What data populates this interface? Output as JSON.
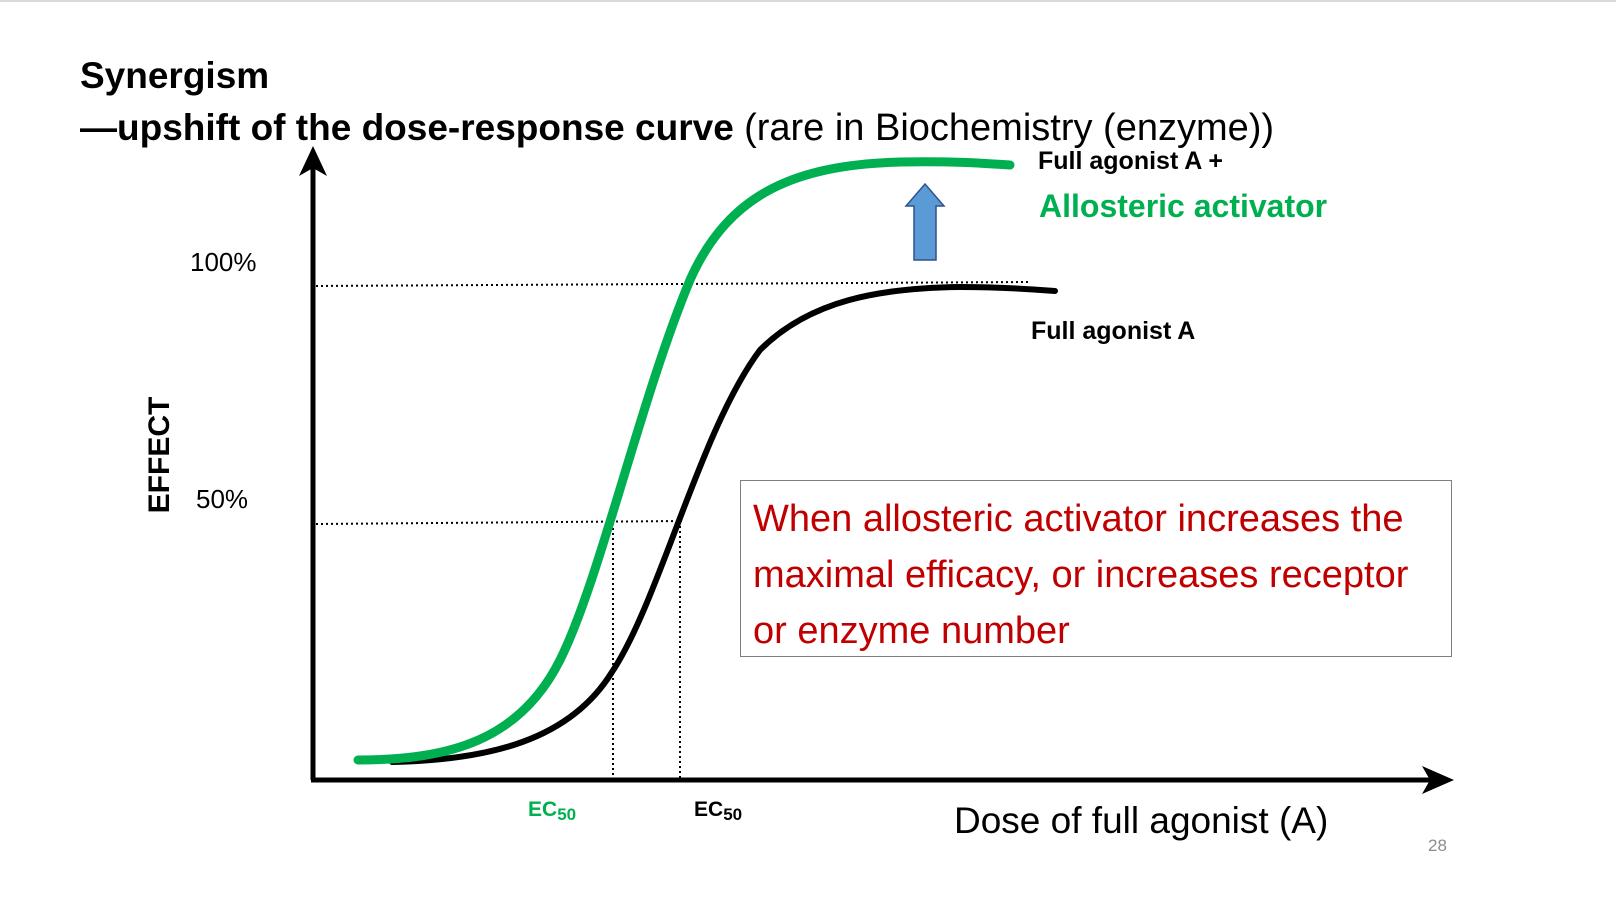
{
  "slide": {
    "title": "Synergism",
    "subtitle_bold": "—upshift of the dose-response curve",
    "subtitle_normal": "(rare in Biochemistry (enzyme))",
    "page_number": "28"
  },
  "axes": {
    "y_label": "EFFECT",
    "x_label": "Dose of full agonist (A)",
    "tick_100": "100%",
    "tick_50": "50%"
  },
  "curves": {
    "activator_label_line1": "Full agonist A +",
    "activator_label_line2": "Allosteric activator",
    "agonist_label": "Full agonist A",
    "ec50_green": "EC",
    "ec50_green_sub": "50",
    "ec50_black": "EC",
    "ec50_black_sub": "50"
  },
  "callout": {
    "text": "When allosteric activator increases the maximal efficacy, or increases receptor or enzyme number"
  },
  "colors": {
    "activator_curve": "#00b050",
    "agonist_curve": "#000000",
    "arrow_fill": "#5b9bd5",
    "callout_text": "#c00000"
  }
}
